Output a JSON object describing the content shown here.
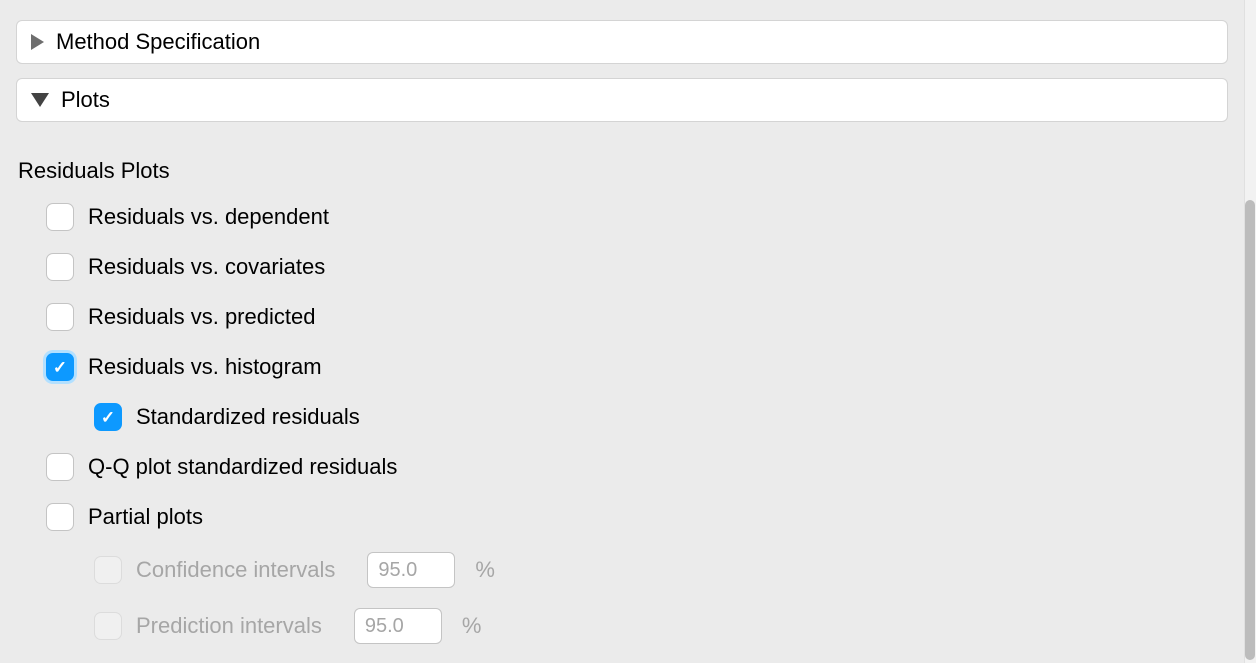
{
  "panels": {
    "method_spec": {
      "title": "Method Specification",
      "expanded": false
    },
    "plots": {
      "title": "Plots",
      "expanded": true
    }
  },
  "section": {
    "title": "Residuals Plots"
  },
  "options": {
    "residuals_vs_dependent": {
      "label": "Residuals vs. dependent",
      "checked": false,
      "disabled": false
    },
    "residuals_vs_covariates": {
      "label": "Residuals vs. covariates",
      "checked": false,
      "disabled": false
    },
    "residuals_vs_predicted": {
      "label": "Residuals vs. predicted",
      "checked": false,
      "disabled": false
    },
    "residuals_vs_histogram": {
      "label": "Residuals vs. histogram",
      "checked": true,
      "disabled": false
    },
    "standardized_residuals": {
      "label": "Standardized residuals",
      "checked": true,
      "disabled": false
    },
    "qq_plot": {
      "label": "Q-Q plot standardized residuals",
      "checked": false,
      "disabled": false
    },
    "partial_plots": {
      "label": "Partial plots",
      "checked": false,
      "disabled": false
    },
    "confidence_intervals": {
      "label": "Confidence intervals",
      "checked": false,
      "disabled": true,
      "value": "95.0",
      "suffix": "%"
    },
    "prediction_intervals": {
      "label": "Prediction intervals",
      "checked": false,
      "disabled": true,
      "value": "95.0",
      "suffix": "%"
    }
  },
  "colors": {
    "background": "#ebebeb",
    "panel_bg": "#ffffff",
    "panel_border": "#d4d4d4",
    "checkbox_checked": "#0d99ff",
    "checkbox_ring": "#b3e0ff",
    "text": "#000000",
    "text_disabled": "#a6a6a6",
    "triangle_right": "#6e6e6e",
    "triangle_down": "#434343"
  }
}
